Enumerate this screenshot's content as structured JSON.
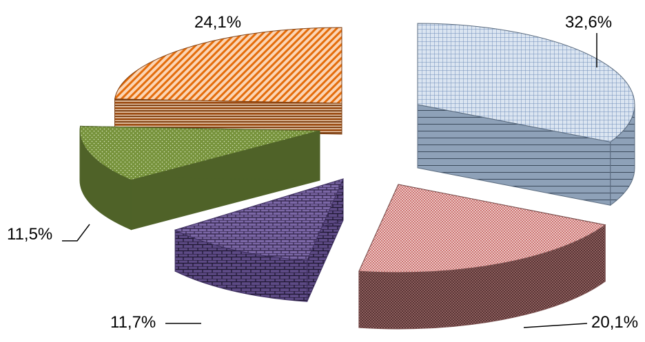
{
  "chart_data": {
    "type": "pie",
    "style": "exploded 3D pie with patterned slice fills",
    "slices": [
      {
        "label": "32,6%",
        "value": 32.6,
        "color": "#b8cce4",
        "side_color": "#5a6b7f",
        "pattern": "grid"
      },
      {
        "label": "20,1%",
        "value": 20.1,
        "color": "#e6b9b8",
        "side_color": "#7a4f4e",
        "pattern": "fine-hatch"
      },
      {
        "label": "11,7%",
        "value": 11.7,
        "color": "#5f4b8b",
        "side_color": "#3f3060",
        "pattern": "brick"
      },
      {
        "label": "11,5%",
        "value": 11.5,
        "color": "#77933c",
        "side_color": "#4f6228",
        "pattern": "dots"
      },
      {
        "label": "24,1%",
        "value": 24.1,
        "color": "#f79646",
        "side_color": "#7f3f10",
        "pattern": "diagonal-stripes"
      }
    ],
    "legend": "none",
    "grid": false
  }
}
